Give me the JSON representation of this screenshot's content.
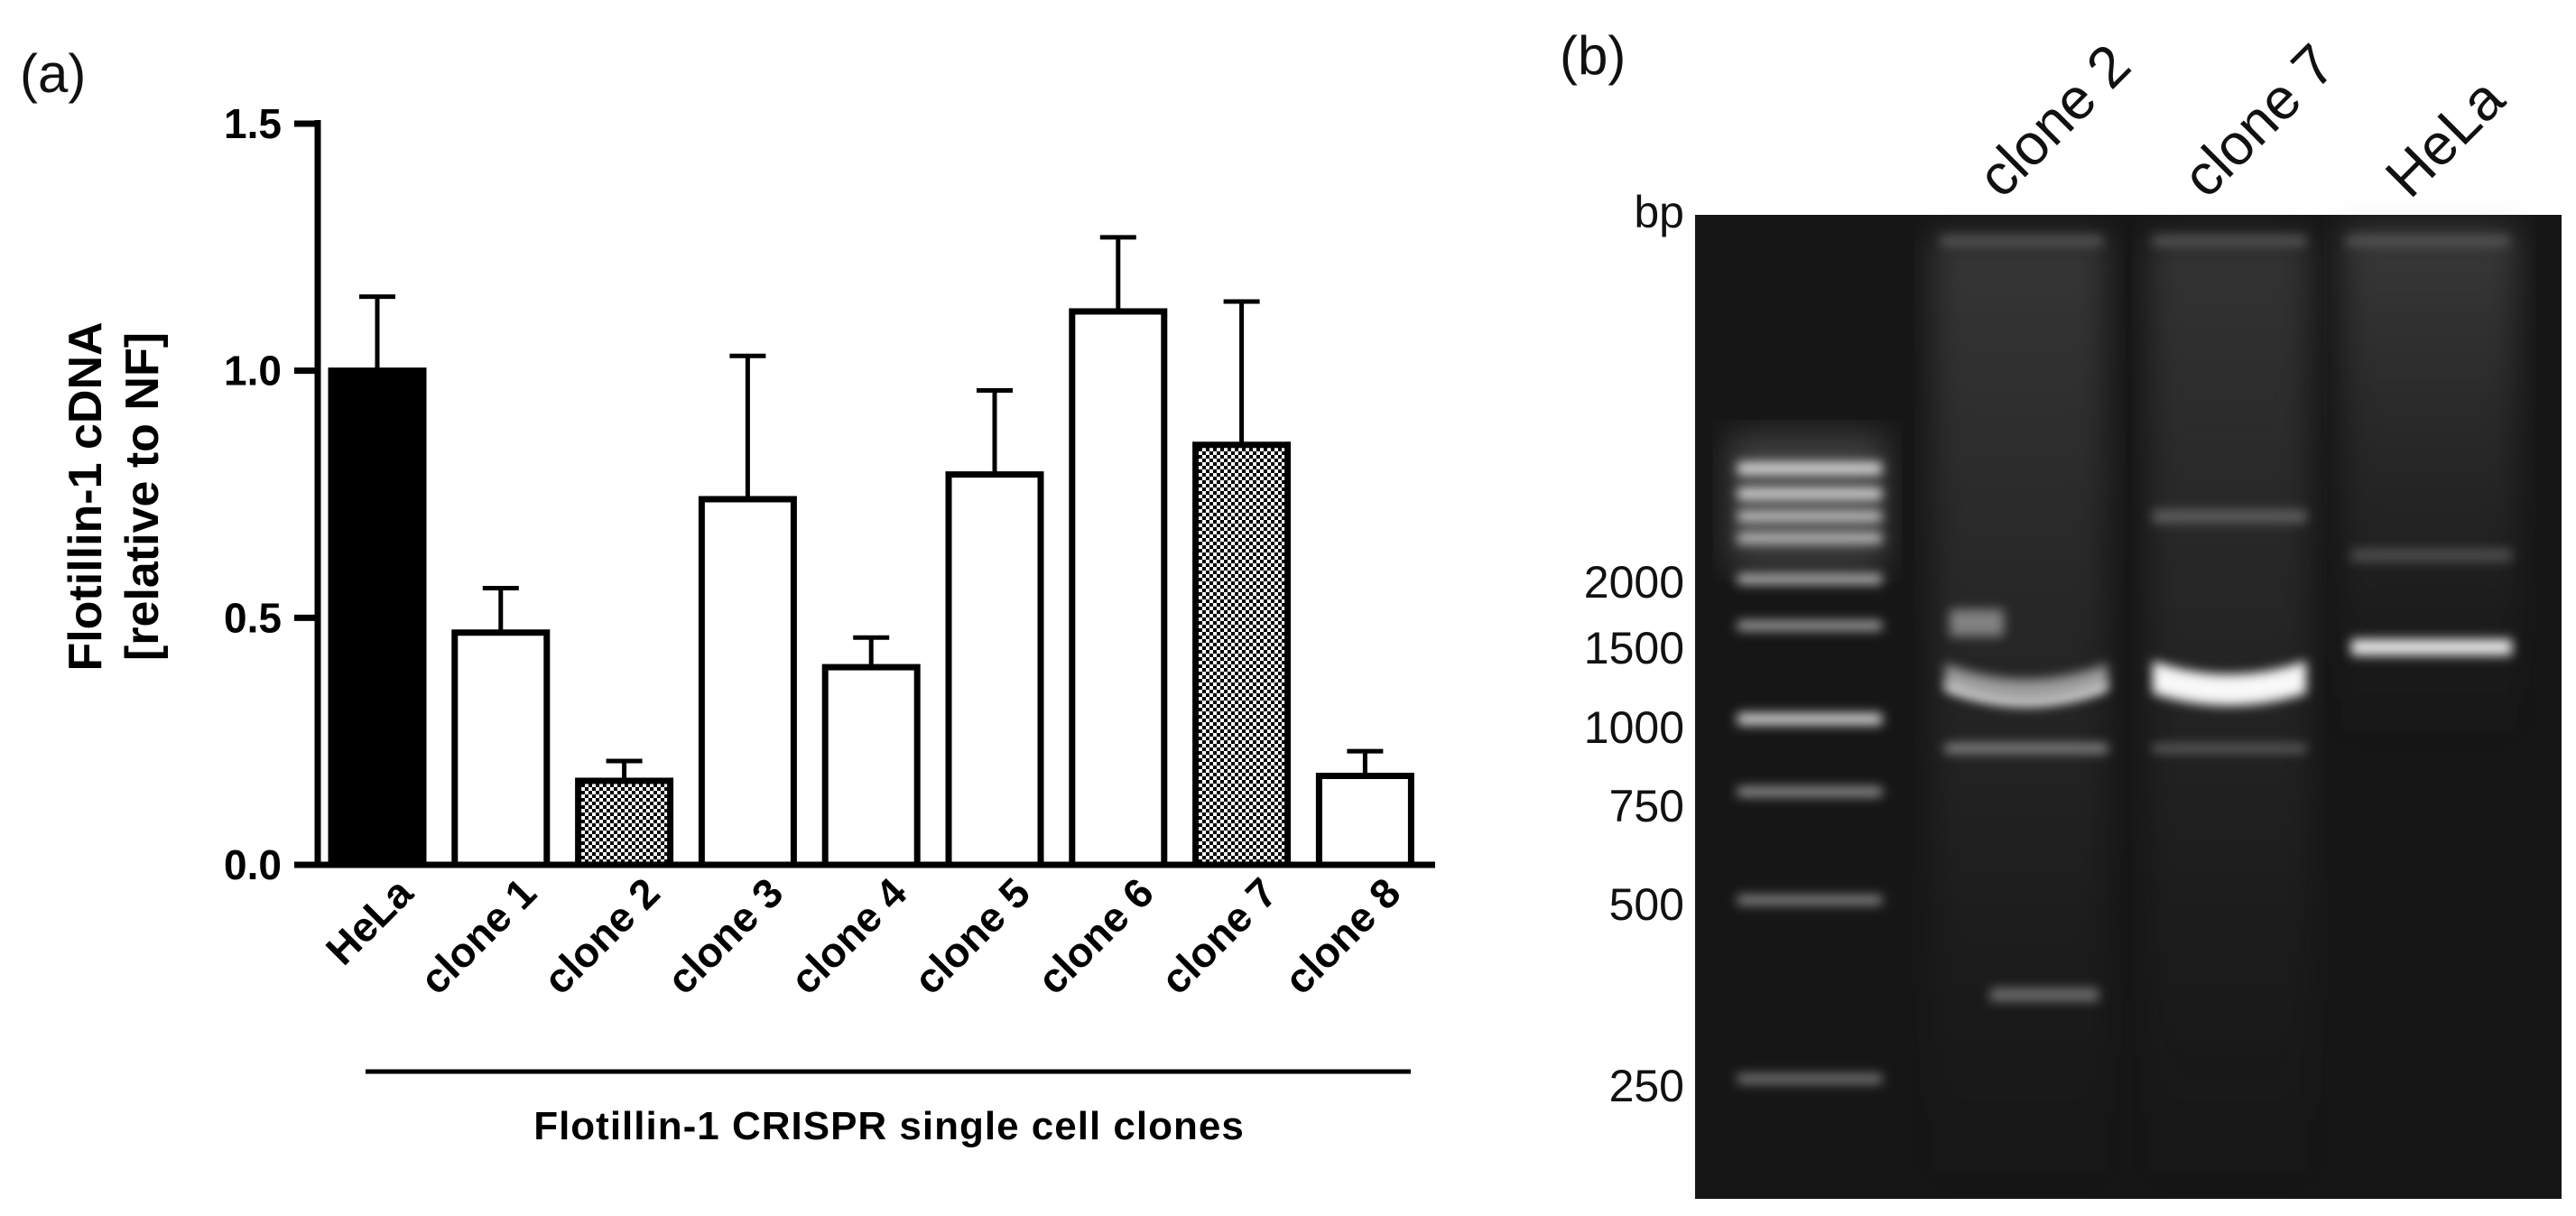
{
  "panels": {
    "a": "(a)",
    "b": "(b)"
  },
  "chart_data": [
    {
      "type": "bar",
      "categories": [
        "HeLa",
        "clone 1",
        "clone 2",
        "clone 3",
        "clone 4",
        "clone 5",
        "clone 6",
        "clone 7",
        "clone 8"
      ],
      "values": [
        1.0,
        0.47,
        0.17,
        0.74,
        0.4,
        0.79,
        1.12,
        0.85,
        0.18
      ],
      "errors": [
        0.15,
        0.09,
        0.04,
        0.29,
        0.06,
        0.17,
        0.15,
        0.29,
        0.05
      ],
      "fills": [
        "solid",
        "open",
        "checkered",
        "open",
        "open",
        "open",
        "open",
        "checkered",
        "open"
      ],
      "ylabel_line1": "Flotillin-1 cDNA",
      "ylabel_line2": "[relative to NF]",
      "xlabel": "Flotillin-1 CRISPR single cell clones",
      "ylim": [
        0,
        1.5
      ],
      "yticks": [
        "0.0",
        "0.5",
        "1.0",
        "1.5"
      ],
      "grid": false
    }
  ],
  "gel": {
    "unit_label": "bp",
    "lanes": [
      "clone 2",
      "clone 7",
      "HeLa"
    ],
    "ladder": [
      "2000",
      "1500",
      "1000",
      "750",
      "500",
      "250"
    ]
  },
  "colors": {
    "bar_solid": "#000000",
    "bar_open": "#ffffff",
    "gel_bg": "#161616",
    "band": "#f4f4f4"
  }
}
